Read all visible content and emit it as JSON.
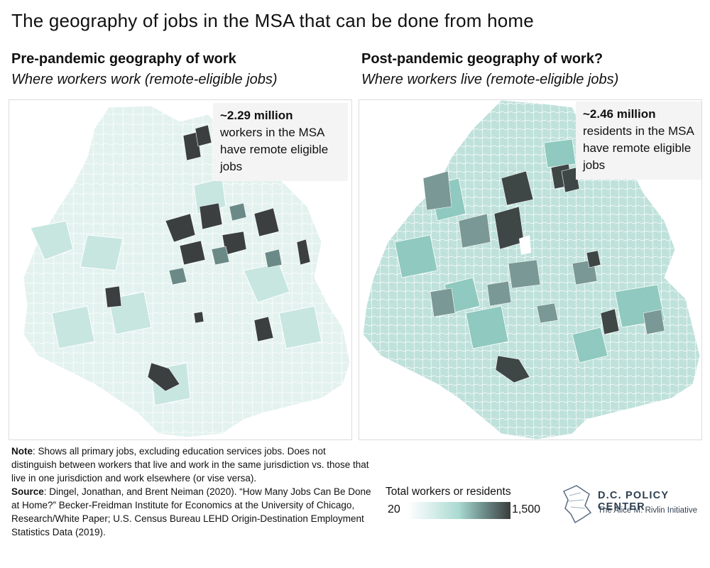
{
  "title": "The geography of jobs in the MSA that can be done from home",
  "panels": [
    {
      "heading": "Pre-pandemic geography of work",
      "subheading": "Where workers work (remote-eligible jobs)",
      "callout_value": "~2.29 million",
      "callout_text": "workers in the MSA have remote eligible jobs"
    },
    {
      "heading": "Post-pandemic geography of work?",
      "subheading": "Where workers live (remote-eligible jobs)",
      "callout_value": "~2.46 million",
      "callout_text": "residents in the MSA have remote eligible jobs"
    }
  ],
  "footnote": {
    "note_label": "Note",
    "note_text": ": Shows all primary jobs, excluding education services jobs. Does not distinguish between workers that live and work in the same jurisdiction vs. those that live in one jurisdiction and work elsewhere (or vise versa).",
    "source_label": "Source",
    "source_text": ": Dingel, Jonathan, and Brent Neiman (2020). “How Many Jobs Can Be Done at Home?” Becker-Freidman Institute for Economics at the University of Chicago, Research/White Paper; U.S. Census Bureau LEHD Origin-Destination Employment Statistics Data (2019)."
  },
  "legend": {
    "title": "Total workers or residents",
    "min": "20",
    "max": "1,500",
    "colors": [
      "#ffffff",
      "#dff1ee",
      "#a9d9d1",
      "#6b8a87",
      "#3a3d3d"
    ]
  },
  "logo": {
    "name": "D.C. POLICY CENTER",
    "tagline": "The Alice M. Rivlin Initiative"
  }
}
